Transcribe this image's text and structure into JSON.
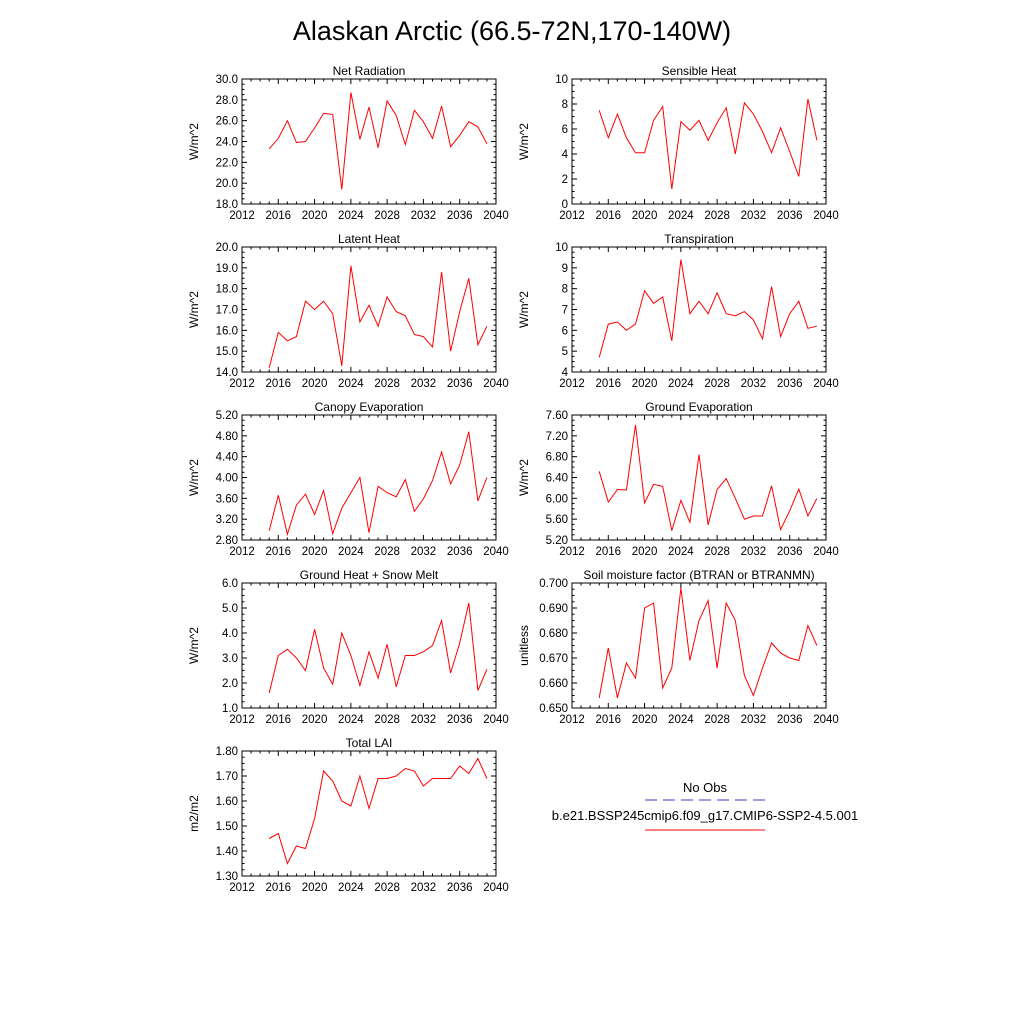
{
  "figure": {
    "title": "Alaskan Arctic (66.5-72N,170-140W)"
  },
  "legend": {
    "obs_label": "No Obs",
    "model_label": "b.e21.BSSP245cmip6.f09_g17.CMIP6-SSP2-4.5.001",
    "obs_color": "#3b3bb0",
    "model_color": "#ff0000"
  },
  "chart_data": [
    {
      "type": "line",
      "title": "Net Radiation",
      "ylabel": "W/m^2",
      "xlim": [
        2012,
        2040
      ],
      "ylim": [
        18,
        30
      ],
      "xticks": [
        "2012",
        "2016",
        "2020",
        "2024",
        "2028",
        "2032",
        "2036",
        "2040"
      ],
      "yticks": [
        "18.0",
        "20.0",
        "22.0",
        "24.0",
        "26.0",
        "28.0",
        "30.0"
      ],
      "series": [
        {
          "color": "#ff0000",
          "x": [
            2015,
            2016,
            2017,
            2018,
            2019,
            2020,
            2021,
            2022,
            2023,
            2024,
            2025,
            2026,
            2027,
            2028,
            2029,
            2030,
            2031,
            2032,
            2033,
            2034,
            2035,
            2036,
            2037,
            2038,
            2039
          ],
          "values": [
            23.3,
            24.3,
            26.0,
            23.9,
            24.0,
            25.3,
            26.7,
            26.6,
            19.4,
            28.7,
            24.2,
            27.3,
            23.4,
            27.9,
            26.5,
            23.7,
            27.0,
            25.9,
            24.3,
            27.4,
            23.5,
            24.6,
            25.9,
            25.4,
            23.8
          ]
        }
      ]
    },
    {
      "type": "line",
      "title": "Sensible Heat",
      "ylabel": "W/m^2",
      "xlim": [
        2012,
        2040
      ],
      "ylim": [
        0,
        10
      ],
      "xticks": [
        "2012",
        "2016",
        "2020",
        "2024",
        "2028",
        "2032",
        "2036",
        "2040"
      ],
      "yticks": [
        "0",
        "2",
        "4",
        "6",
        "8",
        "10"
      ],
      "series": [
        {
          "color": "#ff0000",
          "x": [
            2015,
            2016,
            2017,
            2018,
            2019,
            2020,
            2021,
            2022,
            2023,
            2024,
            2025,
            2026,
            2027,
            2028,
            2029,
            2030,
            2031,
            2032,
            2033,
            2034,
            2035,
            2036,
            2037,
            2038,
            2039
          ],
          "values": [
            7.5,
            5.3,
            7.2,
            5.3,
            4.1,
            4.1,
            6.7,
            7.8,
            1.2,
            6.6,
            5.9,
            6.7,
            5.1,
            6.5,
            7.7,
            4.0,
            8.1,
            7.2,
            5.8,
            4.1,
            6.1,
            4.2,
            2.2,
            8.4,
            5.1
          ]
        }
      ]
    },
    {
      "type": "line",
      "title": "Latent Heat",
      "ylabel": "W/m^2",
      "xlim": [
        2012,
        2040
      ],
      "ylim": [
        14,
        20
      ],
      "xticks": [
        "2012",
        "2016",
        "2020",
        "2024",
        "2028",
        "2032",
        "2036",
        "2040"
      ],
      "yticks": [
        "14.0",
        "15.0",
        "16.0",
        "17.0",
        "18.0",
        "19.0",
        "20.0"
      ],
      "series": [
        {
          "color": "#ff0000",
          "x": [
            2015,
            2016,
            2017,
            2018,
            2019,
            2020,
            2021,
            2022,
            2023,
            2024,
            2025,
            2026,
            2027,
            2028,
            2029,
            2030,
            2031,
            2032,
            2033,
            2034,
            2035,
            2036,
            2037,
            2038,
            2039
          ],
          "values": [
            14.2,
            15.9,
            15.5,
            15.7,
            17.4,
            17.0,
            17.4,
            16.8,
            14.3,
            19.1,
            16.4,
            17.2,
            16.2,
            17.6,
            16.9,
            16.7,
            15.8,
            15.7,
            15.2,
            18.8,
            15.0,
            16.9,
            18.5,
            15.3,
            16.2
          ]
        }
      ]
    },
    {
      "type": "line",
      "title": "Transpiration",
      "ylabel": "W/m^2",
      "xlim": [
        2012,
        2040
      ],
      "ylim": [
        4,
        10
      ],
      "xticks": [
        "2012",
        "2016",
        "2020",
        "2024",
        "2028",
        "2032",
        "2036",
        "2040"
      ],
      "yticks": [
        "4",
        "5",
        "6",
        "7",
        "8",
        "9",
        "10"
      ],
      "series": [
        {
          "color": "#ff0000",
          "x": [
            2015,
            2016,
            2017,
            2018,
            2019,
            2020,
            2021,
            2022,
            2023,
            2024,
            2025,
            2026,
            2027,
            2028,
            2029,
            2030,
            2031,
            2032,
            2033,
            2034,
            2035,
            2036,
            2037,
            2038,
            2039
          ],
          "values": [
            4.7,
            6.3,
            6.4,
            6.0,
            6.3,
            7.9,
            7.3,
            7.6,
            5.5,
            9.4,
            6.8,
            7.4,
            6.8,
            7.8,
            6.8,
            6.7,
            6.9,
            6.5,
            5.6,
            8.1,
            5.7,
            6.8,
            7.4,
            6.1,
            6.2
          ]
        }
      ]
    },
    {
      "type": "line",
      "title": "Canopy Evaporation",
      "ylabel": "W/m^2",
      "xlim": [
        2012,
        2040
      ],
      "ylim": [
        2.8,
        5.2
      ],
      "xticks": [
        "2012",
        "2016",
        "2020",
        "2024",
        "2028",
        "2032",
        "2036",
        "2040"
      ],
      "yticks": [
        "2.80",
        "3.20",
        "3.60",
        "4.00",
        "4.40",
        "4.80",
        "5.20"
      ],
      "series": [
        {
          "color": "#ff0000",
          "x": [
            2015,
            2016,
            2017,
            2018,
            2019,
            2020,
            2021,
            2022,
            2023,
            2024,
            2025,
            2026,
            2027,
            2028,
            2029,
            2030,
            2031,
            2032,
            2033,
            2034,
            2035,
            2036,
            2037,
            2038,
            2039
          ],
          "values": [
            2.98,
            3.66,
            2.91,
            3.47,
            3.68,
            3.29,
            3.75,
            2.92,
            3.41,
            3.71,
            4.0,
            2.94,
            3.83,
            3.71,
            3.63,
            3.96,
            3.35,
            3.59,
            3.94,
            4.49,
            3.88,
            4.24,
            4.88,
            3.55,
            4.0
          ]
        }
      ]
    },
    {
      "type": "line",
      "title": "Ground Evaporation",
      "ylabel": "W/m^2",
      "xlim": [
        2012,
        2040
      ],
      "ylim": [
        5.2,
        7.6
      ],
      "xticks": [
        "2012",
        "2016",
        "2020",
        "2024",
        "2028",
        "2032",
        "2036",
        "2040"
      ],
      "yticks": [
        "5.20",
        "5.60",
        "6.00",
        "6.40",
        "6.80",
        "7.20",
        "7.60"
      ],
      "series": [
        {
          "color": "#ff0000",
          "x": [
            2015,
            2016,
            2017,
            2018,
            2019,
            2020,
            2021,
            2022,
            2023,
            2024,
            2025,
            2026,
            2027,
            2028,
            2029,
            2030,
            2031,
            2032,
            2033,
            2034,
            2035,
            2036,
            2037,
            2038,
            2039
          ],
          "values": [
            6.52,
            5.93,
            6.17,
            6.16,
            7.41,
            5.91,
            6.27,
            6.23,
            5.38,
            5.96,
            5.54,
            6.84,
            5.49,
            6.17,
            6.38,
            6.0,
            5.6,
            5.66,
            5.66,
            6.24,
            5.4,
            5.76,
            6.18,
            5.66,
            6.0
          ]
        }
      ]
    },
    {
      "type": "line",
      "title": "Ground Heat + Snow Melt",
      "ylabel": "W/m^2",
      "xlim": [
        2012,
        2040
      ],
      "ylim": [
        1,
        6
      ],
      "xticks": [
        "2012",
        "2016",
        "2020",
        "2024",
        "2028",
        "2032",
        "2036",
        "2040"
      ],
      "yticks": [
        "1.0",
        "2.0",
        "3.0",
        "4.0",
        "5.0",
        "6.0"
      ],
      "series": [
        {
          "color": "#ff0000",
          "x": [
            2015,
            2016,
            2017,
            2018,
            2019,
            2020,
            2021,
            2022,
            2023,
            2024,
            2025,
            2026,
            2027,
            2028,
            2029,
            2030,
            2031,
            2032,
            2033,
            2034,
            2035,
            2036,
            2037,
            2038,
            2039
          ],
          "values": [
            1.6,
            3.1,
            3.35,
            3.0,
            2.5,
            4.15,
            2.6,
            1.95,
            4.0,
            3.1,
            1.9,
            3.25,
            2.2,
            3.55,
            1.85,
            3.1,
            3.1,
            3.25,
            3.5,
            4.5,
            2.4,
            3.6,
            5.2,
            1.7,
            2.55
          ]
        }
      ]
    },
    {
      "type": "line",
      "title": "Soil moisture factor (BTRAN or BTRANMN)",
      "ylabel": "unitless",
      "xlim": [
        2012,
        2040
      ],
      "ylim": [
        0.65,
        0.7
      ],
      "xticks": [
        "2012",
        "2016",
        "2020",
        "2024",
        "2028",
        "2032",
        "2036",
        "2040"
      ],
      "yticks": [
        "0.650",
        "0.660",
        "0.670",
        "0.680",
        "0.690",
        "0.700"
      ],
      "series": [
        {
          "color": "#ff0000",
          "x": [
            2015,
            2016,
            2017,
            2018,
            2019,
            2020,
            2021,
            2022,
            2023,
            2024,
            2025,
            2026,
            2027,
            2028,
            2029,
            2030,
            2031,
            2032,
            2033,
            2034,
            2035,
            2036,
            2037,
            2038,
            2039
          ],
          "values": [
            0.654,
            0.674,
            0.654,
            0.668,
            0.662,
            0.69,
            0.692,
            0.658,
            0.666,
            0.698,
            0.669,
            0.685,
            0.693,
            0.666,
            0.692,
            0.685,
            0.663,
            0.655,
            0.666,
            0.676,
            0.672,
            0.67,
            0.669,
            0.683,
            0.675
          ]
        }
      ]
    },
    {
      "type": "line",
      "title": "Total LAI",
      "ylabel": "m2/m2",
      "xlim": [
        2012,
        2040
      ],
      "ylim": [
        1.3,
        1.8
      ],
      "xticks": [
        "2012",
        "2016",
        "2020",
        "2024",
        "2028",
        "2032",
        "2036",
        "2040"
      ],
      "yticks": [
        "1.30",
        "1.40",
        "1.50",
        "1.60",
        "1.70",
        "1.80"
      ],
      "series": [
        {
          "color": "#ff0000",
          "x": [
            2015,
            2016,
            2017,
            2018,
            2019,
            2020,
            2021,
            2022,
            2023,
            2024,
            2025,
            2026,
            2027,
            2028,
            2029,
            2030,
            2031,
            2032,
            2033,
            2034,
            2035,
            2036,
            2037,
            2038,
            2039
          ],
          "values": [
            1.45,
            1.47,
            1.35,
            1.42,
            1.41,
            1.53,
            1.72,
            1.68,
            1.6,
            1.58,
            1.7,
            1.57,
            1.69,
            1.69,
            1.7,
            1.73,
            1.72,
            1.66,
            1.69,
            1.69,
            1.69,
            1.74,
            1.71,
            1.77,
            1.69
          ]
        }
      ]
    }
  ]
}
